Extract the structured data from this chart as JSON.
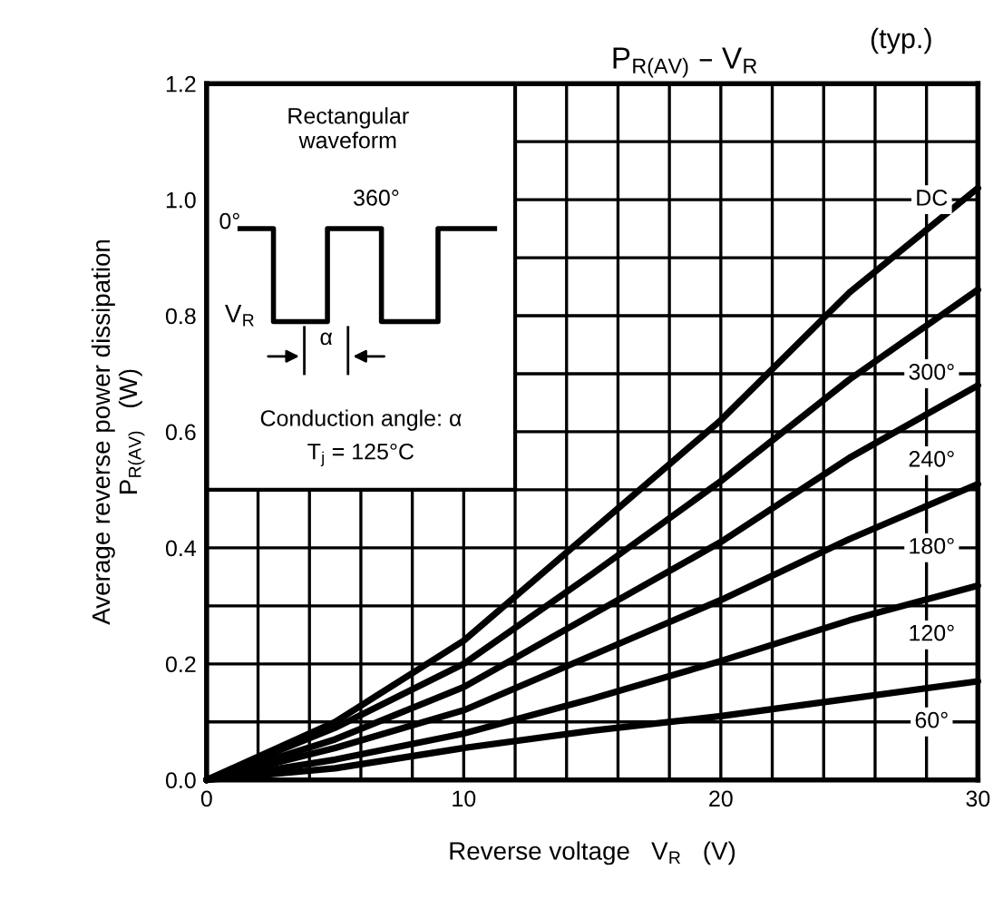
{
  "chart_data": {
    "type": "line",
    "title": "P$_{R(AV)}$ – V$_{R}$",
    "xlabel": "Reverse voltage   V$_{R}$   (V)",
    "ylabel": "Average reverse power dissipation\nP$_{R(AV)}$   (W)",
    "x": [
      0,
      5,
      10,
      15,
      20,
      25,
      30
    ],
    "series": [
      {
        "name": "DC",
        "color": "#000000",
        "values": [
          0,
          0.1,
          0.24,
          0.43,
          0.62,
          0.84,
          1.02
        ]
      },
      {
        "name": "300°",
        "color": "#000000",
        "values": [
          0,
          0.09,
          0.2,
          0.355,
          0.515,
          0.69,
          0.845
        ]
      },
      {
        "name": "240°",
        "color": "#000000",
        "values": [
          0,
          0.07,
          0.16,
          0.285,
          0.41,
          0.555,
          0.68
        ]
      },
      {
        "name": "180°",
        "color": "#000000",
        "values": [
          0,
          0.055,
          0.12,
          0.215,
          0.31,
          0.415,
          0.51
        ]
      },
      {
        "name": "120°",
        "color": "#000000",
        "values": [
          0,
          0.035,
          0.08,
          0.14,
          0.205,
          0.275,
          0.335
        ]
      },
      {
        "name": "60°",
        "color": "#000000",
        "values": [
          0,
          0.02,
          0.055,
          0.085,
          0.11,
          0.14,
          0.17
        ]
      }
    ],
    "xlim": [
      0,
      30
    ],
    "ylim": [
      0,
      1.2
    ],
    "xticks": [
      0,
      {
        "value": 2,
        "label": null
      },
      {
        "value": 4,
        "label": null
      },
      {
        "value": 6,
        "label": null
      },
      {
        "value": 8,
        "label": null
      },
      10,
      {
        "value": 12,
        "label": null
      },
      {
        "value": 14,
        "label": null
      },
      {
        "value": 16,
        "label": null
      },
      {
        "value": 18,
        "label": null
      },
      20,
      {
        "value": 22,
        "label": null
      },
      {
        "value": 24,
        "label": null
      },
      {
        "value": 26,
        "label": null
      },
      {
        "value": 28,
        "label": null
      },
      30
    ],
    "yticks": [
      {
        "value": 0,
        "label": "0.0"
      },
      {
        "value": 0.1,
        "label": null
      },
      {
        "value": 0.2,
        "label": "0.2"
      },
      {
        "value": 0.3,
        "label": null
      },
      {
        "value": 0.4,
        "label": "0.4"
      },
      {
        "value": 0.5,
        "label": null
      },
      {
        "value": 0.6,
        "label": "0.6"
      },
      {
        "value": 0.7,
        "label": null
      },
      {
        "value": 0.8,
        "label": "0.8"
      },
      {
        "value": 0.9,
        "label": null
      },
      {
        "value": 1.0,
        "label": "1.0"
      },
      {
        "value": 1.1,
        "label": null
      },
      {
        "value": 1.2,
        "label": "1.2"
      }
    ],
    "grid": true,
    "legend": false,
    "marker": "none",
    "line_style": "solid",
    "annotations": [
      "(typ.)",
      "Rectangular\nwaveform",
      "0°",
      "360°",
      "V$_{R}$",
      "α",
      "Conduction angle: α",
      "T$_{j}$ = 125°C"
    ]
  }
}
